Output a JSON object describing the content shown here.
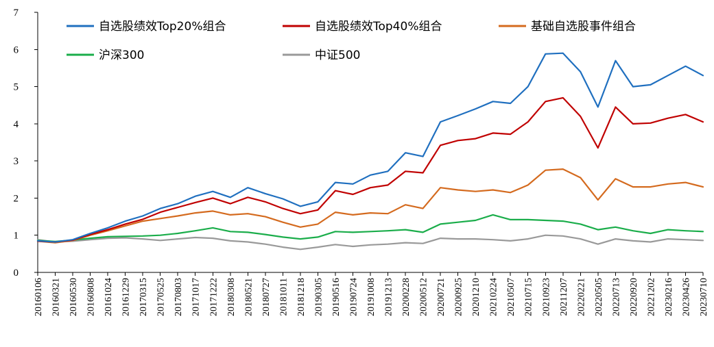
{
  "chart_data": {
    "type": "line",
    "title": "",
    "xlabel": "",
    "ylabel": "",
    "ylim": [
      0,
      7
    ],
    "yticks": [
      0,
      1,
      2,
      3,
      4,
      5,
      6,
      7
    ],
    "legend_position": "top",
    "categories": [
      "20160106",
      "20160321",
      "20160530",
      "20160808",
      "20161024",
      "20161229",
      "20170315",
      "20170525",
      "20170803",
      "20171017",
      "20171222",
      "20180308",
      "20180521",
      "20180727",
      "20181011",
      "20181218",
      "20190305",
      "20190516",
      "20190724",
      "20191008",
      "20191213",
      "20200228",
      "20200512",
      "20200721",
      "20200925",
      "20201210",
      "20210224",
      "20210507",
      "20210715",
      "20210923",
      "20211207",
      "20220221",
      "20220505",
      "20220713",
      "20220920",
      "20221202",
      "20230216",
      "20230426",
      "20230710"
    ],
    "series": [
      {
        "name": "自选股绩效Top20%组合",
        "color": "#1f6fbf",
        "values": [
          0.85,
          0.82,
          0.88,
          1.05,
          1.2,
          1.38,
          1.52,
          1.72,
          1.85,
          2.05,
          2.18,
          2.02,
          2.28,
          2.12,
          1.98,
          1.78,
          1.9,
          2.42,
          2.38,
          2.62,
          2.72,
          3.22,
          3.12,
          4.05,
          4.22,
          4.4,
          4.6,
          4.55,
          5.0,
          5.88,
          5.9,
          5.4,
          4.45,
          5.7,
          5.0,
          5.05,
          5.3,
          5.55,
          5.3
        ]
      },
      {
        "name": "自选股绩效Top40%组合",
        "color": "#c00000",
        "values": [
          0.84,
          0.82,
          0.87,
          1.02,
          1.15,
          1.3,
          1.43,
          1.62,
          1.75,
          1.88,
          2.0,
          1.85,
          2.02,
          1.9,
          1.72,
          1.58,
          1.68,
          2.2,
          2.1,
          2.28,
          2.35,
          2.72,
          2.68,
          3.42,
          3.55,
          3.6,
          3.75,
          3.72,
          4.05,
          4.6,
          4.7,
          4.2,
          3.35,
          4.45,
          4.0,
          4.02,
          4.15,
          4.25,
          4.05
        ]
      },
      {
        "name": "基础自选股事件组合",
        "color": "#d46a1e",
        "values": [
          0.84,
          0.8,
          0.86,
          1.0,
          1.12,
          1.25,
          1.38,
          1.45,
          1.52,
          1.6,
          1.65,
          1.55,
          1.58,
          1.5,
          1.35,
          1.22,
          1.3,
          1.62,
          1.55,
          1.6,
          1.58,
          1.82,
          1.72,
          2.28,
          2.22,
          2.18,
          2.22,
          2.15,
          2.35,
          2.75,
          2.78,
          2.55,
          1.95,
          2.52,
          2.3,
          2.3,
          2.38,
          2.42,
          2.3
        ]
      },
      {
        "name": "沪深300",
        "color": "#1aad4a",
        "values": [
          0.86,
          0.83,
          0.87,
          0.92,
          0.96,
          0.97,
          0.98,
          1.0,
          1.05,
          1.12,
          1.2,
          1.1,
          1.08,
          1.02,
          0.95,
          0.9,
          0.95,
          1.1,
          1.08,
          1.1,
          1.12,
          1.15,
          1.08,
          1.3,
          1.35,
          1.4,
          1.55,
          1.42,
          1.42,
          1.4,
          1.38,
          1.3,
          1.15,
          1.22,
          1.12,
          1.05,
          1.15,
          1.12,
          1.1
        ]
      },
      {
        "name": "中证500",
        "color": "#999999",
        "values": [
          0.88,
          0.82,
          0.84,
          0.88,
          0.92,
          0.93,
          0.9,
          0.86,
          0.9,
          0.94,
          0.92,
          0.85,
          0.82,
          0.76,
          0.68,
          0.62,
          0.68,
          0.75,
          0.7,
          0.74,
          0.76,
          0.8,
          0.78,
          0.92,
          0.9,
          0.9,
          0.88,
          0.85,
          0.9,
          1.0,
          0.98,
          0.9,
          0.76,
          0.9,
          0.85,
          0.82,
          0.9,
          0.88,
          0.86
        ]
      }
    ]
  }
}
